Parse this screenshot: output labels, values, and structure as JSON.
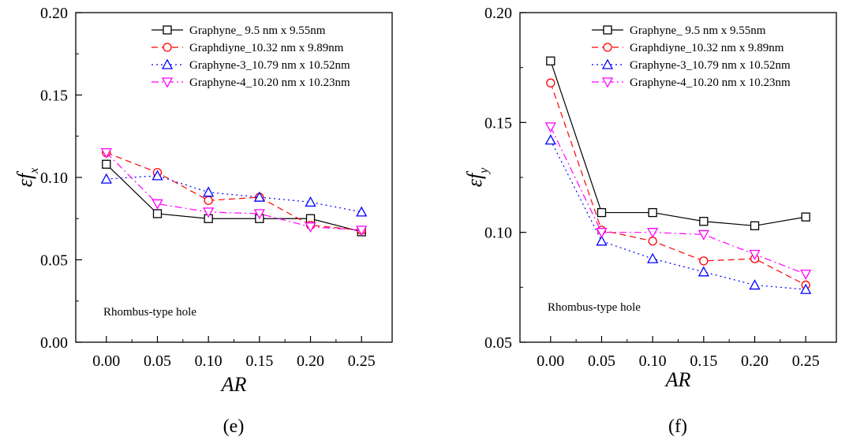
{
  "chart_data": [
    {
      "type": "line",
      "panel_caption": "(e)",
      "xlabel": "AR",
      "ylabel_main": "εf",
      "ylabel_sub": "x",
      "annotation": "Rhombus-type hole",
      "xlim": [
        -0.03,
        0.28
      ],
      "ylim": [
        0.0,
        0.2
      ],
      "x": [
        0.0,
        0.05,
        0.1,
        0.15,
        0.2,
        0.25
      ],
      "x_tick_labels": [
        "0.00",
        "0.05",
        "0.10",
        "0.15",
        "0.20",
        "0.25"
      ],
      "y_ticks": [
        0.0,
        0.05,
        0.1,
        0.15,
        0.2
      ],
      "y_tick_labels": [
        "0.00",
        "0.05",
        "0.10",
        "0.15",
        "0.20"
      ],
      "legend_position": "top-right",
      "grid": false,
      "series": [
        {
          "name": "Graphyne_   9.5 nm x 9.55nm",
          "values": [
            0.108,
            0.078,
            0.075,
            0.075,
            0.075,
            0.067
          ],
          "color": "#000000",
          "marker": "square",
          "dash": "solid"
        },
        {
          "name": "Graphdiyne_10.32 nm x 9.89nm",
          "values": [
            0.115,
            0.103,
            0.086,
            0.088,
            0.071,
            0.068
          ],
          "color": "#ff0000",
          "marker": "circle",
          "dash": "dashed"
        },
        {
          "name": "Graphyne-3_10.79 nm x 10.52nm",
          "values": [
            0.099,
            0.101,
            0.091,
            0.088,
            0.085,
            0.079
          ],
          "color": "#0000ff",
          "marker": "triangle-up",
          "dash": "dotted"
        },
        {
          "name": "Graphyne-4_10.20 nm x 10.23nm",
          "values": [
            0.115,
            0.084,
            0.079,
            0.078,
            0.07,
            0.068
          ],
          "color": "#ff00ff",
          "marker": "triangle-down",
          "dash": "dashdot"
        }
      ]
    },
    {
      "type": "line",
      "panel_caption": "(f)",
      "xlabel": "AR",
      "ylabel_main": "εf",
      "ylabel_sub": "y",
      "annotation": "Rhombus-type hole",
      "xlim": [
        -0.03,
        0.28
      ],
      "ylim": [
        0.05,
        0.2
      ],
      "x": [
        0.0,
        0.05,
        0.1,
        0.15,
        0.2,
        0.25
      ],
      "x_tick_labels": [
        "0.00",
        "0.05",
        "0.10",
        "0.15",
        "0.20",
        "0.25"
      ],
      "y_ticks": [
        0.05,
        0.1,
        0.15,
        0.2
      ],
      "y_tick_labels": [
        "0.05",
        "0.10",
        "0.15",
        "0.20"
      ],
      "legend_position": "top-right",
      "grid": false,
      "series": [
        {
          "name": "Graphyne_   9.5 nm x 9.55nm",
          "values": [
            0.178,
            0.109,
            0.109,
            0.105,
            0.103,
            0.107
          ],
          "color": "#000000",
          "marker": "square",
          "dash": "solid"
        },
        {
          "name": "Graphdiyne_10.32 nm x 9.89nm",
          "values": [
            0.168,
            0.101,
            0.096,
            0.087,
            0.088,
            0.076
          ],
          "color": "#ff0000",
          "marker": "circle",
          "dash": "dashed"
        },
        {
          "name": "Graphyne-3_10.79 nm x 10.52nm",
          "values": [
            0.142,
            0.096,
            0.088,
            0.082,
            0.076,
            0.074
          ],
          "color": "#0000ff",
          "marker": "triangle-up",
          "dash": "dotted"
        },
        {
          "name": "Graphyne-4_10.20 nm x 10.23nm",
          "values": [
            0.148,
            0.1,
            0.1,
            0.099,
            0.09,
            0.081
          ],
          "color": "#ff00ff",
          "marker": "triangle-down",
          "dash": "dashdot"
        }
      ]
    }
  ]
}
